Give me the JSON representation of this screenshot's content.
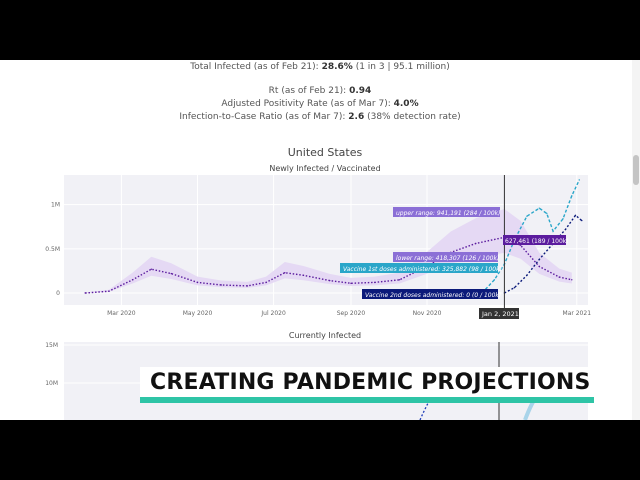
{
  "stats": {
    "total_infected_label": "Total Infected (as of Feb 21):",
    "total_infected_value": "28.6%",
    "total_infected_note": "(1 in 3 | 95.1 million)",
    "rt_label": "Rt (as of Feb 21):",
    "rt_value": "0.94",
    "positivity_label": "Adjusted Positivity Rate (as of Mar 7):",
    "positivity_value": "4.0%",
    "ratio_label": "Infection-to-Case Ratio (as of Mar 7):",
    "ratio_value": "2.6",
    "ratio_note": "(38% detection rate)"
  },
  "section_title": "United States",
  "chart_data": [
    {
      "type": "line",
      "title": "Newly Infected / Vaccinated",
      "y_tick_labels": [
        "1M",
        "0.5M",
        "0"
      ],
      "x_tick_labels": [
        "Mar 2020",
        "May 2020",
        "Jul 2020",
        "Sep 2020",
        "Nov 2020",
        "Mar 2021"
      ],
      "ylim": [
        0,
        1100000
      ],
      "hover_date": "Jan 2, 2021",
      "hover_labels": {
        "upper": "upper range: 941,191 (284 / 100k)",
        "estimate": "627,461 (189 / 100k)",
        "lower": "lower range: 418,307 (126 / 100k)",
        "dose1": "Vaccine 1st doses administered: 325,882 (98 / 100k)",
        "dose2": "Vaccine 2nd doses administered: 0 (0 / 100k)"
      },
      "series": [
        {
          "color": "#5b1c9e",
          "x": [
            "2020-02-01",
            "2020-02-20",
            "2020-03-10",
            "2020-03-25",
            "2020-04-10",
            "2020-05-01",
            "2020-05-20",
            "2020-06-10",
            "2020-06-25",
            "2020-07-10",
            "2020-07-25",
            "2020-08-15",
            "2020-09-01",
            "2020-09-20",
            "2020-10-10",
            "2020-10-30",
            "2020-11-20",
            "2020-12-10",
            "2021-01-02",
            "2021-01-15",
            "2021-01-30",
            "2021-02-15",
            "2021-02-25"
          ],
          "values": [
            0,
            20000,
            150000,
            270000,
            220000,
            120000,
            90000,
            80000,
            120000,
            230000,
            200000,
            140000,
            110000,
            120000,
            150000,
            290000,
            460000,
            560000,
            630000,
            540000,
            300000,
            180000,
            150000
          ]
        },
        {
          "color": "#2aa6c9",
          "x": [
            "2020-12-15",
            "2020-12-25",
            "2021-01-02",
            "2021-01-10",
            "2021-01-20",
            "2021-01-30",
            "2021-02-05",
            "2021-02-10",
            "2021-02-18",
            "2021-02-25",
            "2021-03-03"
          ],
          "values": [
            0,
            150000,
            326000,
            600000,
            870000,
            960000,
            900000,
            700000,
            840000,
            1100000,
            1280000
          ]
        },
        {
          "color": "#0b1a7a",
          "x": [
            "2021-01-02",
            "2021-01-10",
            "2021-01-20",
            "2021-01-30",
            "2021-02-10",
            "2021-02-20",
            "2021-02-28",
            "2021-03-05"
          ],
          "values": [
            0,
            60000,
            200000,
            380000,
            560000,
            720000,
            880000,
            820000
          ]
        }
      ]
    },
    {
      "type": "line",
      "title": "Currently Infected",
      "y_tick_labels": [
        "15M",
        "10M"
      ],
      "ylim": [
        0,
        15000000
      ]
    }
  ],
  "lower_third": "CREATING PANDEMIC PROJECTIONS",
  "colors": {
    "brand_bar": "#2ec4a6",
    "band": "#e5d9f4",
    "purple": "#5b1c9e",
    "teal": "#2aa6c9",
    "navy": "#0b1a7a"
  }
}
